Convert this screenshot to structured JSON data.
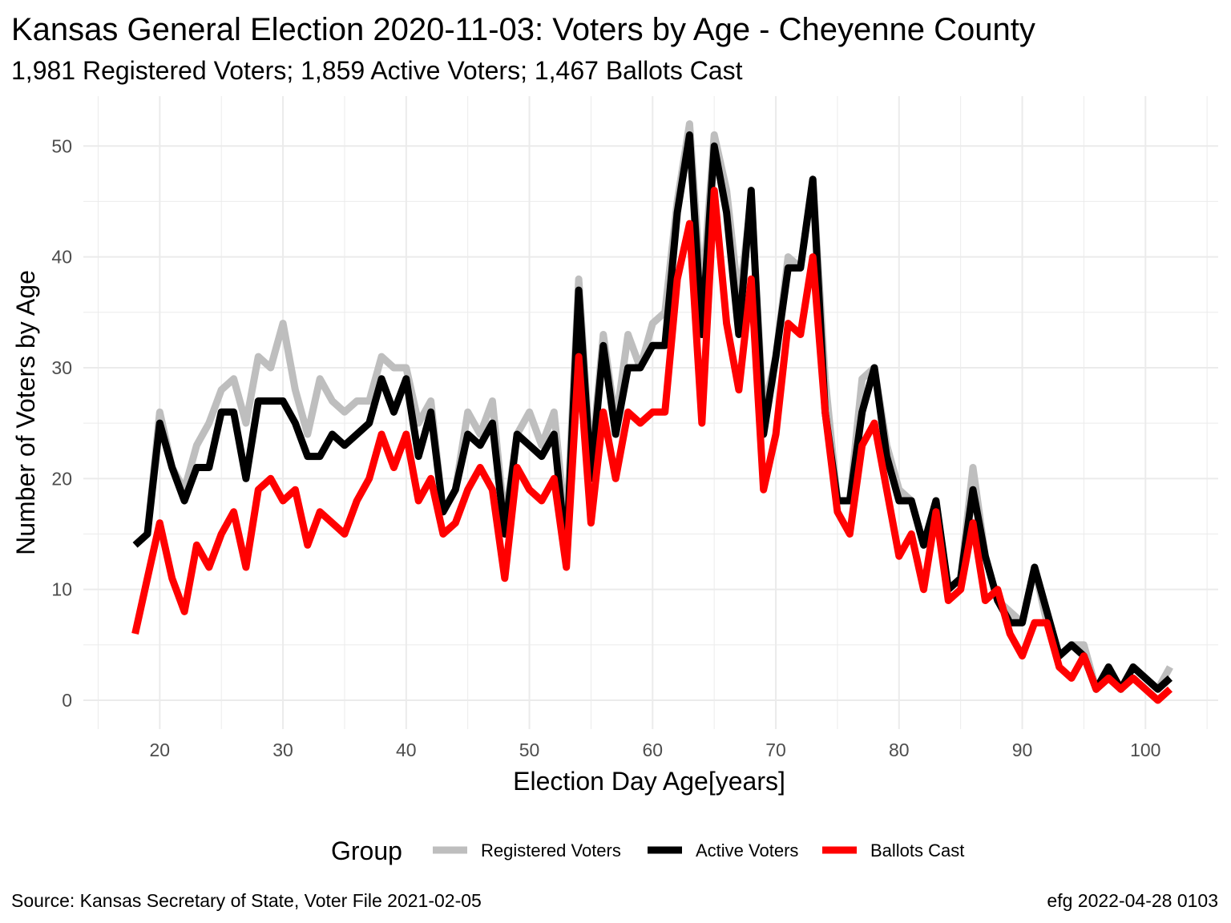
{
  "chart_data": {
    "type": "line",
    "title": "Kansas General Election 2020-11-03:  Voters by Age - Cheyenne County",
    "subtitle": "1,981 Registered Voters; 1,859 Active Voters; 1,467 Ballots Cast",
    "xlabel": "Election Day Age[years]",
    "ylabel": "Number of Voters by Age",
    "xlim": [
      13.8,
      105.9
    ],
    "ylim": [
      -2.6,
      54.5
    ],
    "x_ticks": [
      20,
      30,
      40,
      50,
      60,
      70,
      80,
      90,
      100
    ],
    "y_ticks": [
      0,
      10,
      20,
      30,
      40,
      50
    ],
    "x_tick_labels": [
      "20",
      "30",
      "40",
      "50",
      "60",
      "70",
      "80",
      "90",
      "100"
    ],
    "y_tick_labels": [
      "0",
      "10",
      "20",
      "30",
      "40",
      "50"
    ],
    "grid": true,
    "legend": {
      "title": "Group",
      "position": "bottom",
      "items": [
        "Registered Voters",
        "Active Voters",
        "Ballots Cast"
      ]
    },
    "caption_left": "Source:  Kansas Secretary of State, Voter File  2021-02-05",
    "caption_right": "efg 2022-04-28 0103",
    "x": [
      18,
      19,
      20,
      21,
      22,
      23,
      24,
      25,
      26,
      27,
      28,
      29,
      30,
      31,
      32,
      33,
      34,
      35,
      36,
      37,
      38,
      39,
      40,
      41,
      42,
      43,
      44,
      45,
      46,
      47,
      48,
      49,
      50,
      51,
      52,
      53,
      54,
      55,
      56,
      57,
      58,
      59,
      60,
      61,
      62,
      63,
      64,
      65,
      66,
      67,
      68,
      69,
      70,
      71,
      72,
      73,
      74,
      75,
      76,
      77,
      78,
      79,
      80,
      81,
      82,
      83,
      84,
      85,
      86,
      87,
      88,
      89,
      90,
      91,
      92,
      93,
      94,
      95,
      96,
      97,
      98,
      99,
      100,
      101,
      102
    ],
    "series": [
      {
        "name": "Registered Voters",
        "color": "#bebebe",
        "values": [
          14,
          15,
          26,
          21,
          19,
          23,
          25,
          28,
          29,
          25,
          31,
          30,
          34,
          28,
          24,
          29,
          27,
          26,
          27,
          27,
          31,
          30,
          30,
          25,
          27,
          17,
          19,
          26,
          24,
          27,
          16,
          24,
          26,
          23,
          26,
          15,
          38,
          21,
          33,
          25,
          33,
          30,
          34,
          35,
          45,
          52,
          36,
          51,
          46,
          36,
          45,
          26,
          31,
          40,
          39,
          47,
          29,
          18,
          18,
          29,
          30,
          23,
          19,
          18,
          14,
          18,
          10,
          11,
          21,
          13,
          9,
          8,
          7,
          12,
          7,
          4,
          5,
          5,
          1,
          2,
          1,
          3,
          2,
          1,
          3
        ]
      },
      {
        "name": "Active Voters",
        "color": "#000000",
        "values": [
          14,
          15,
          25,
          21,
          18,
          21,
          21,
          26,
          26,
          20,
          27,
          27,
          27,
          25,
          22,
          22,
          24,
          23,
          24,
          25,
          29,
          26,
          29,
          22,
          26,
          17,
          19,
          24,
          23,
          25,
          15,
          24,
          23,
          22,
          24,
          13,
          37,
          20,
          32,
          24,
          30,
          30,
          32,
          32,
          44,
          51,
          33,
          50,
          44,
          33,
          46,
          24,
          31,
          39,
          39,
          47,
          26,
          18,
          18,
          26,
          30,
          22,
          18,
          18,
          14,
          18,
          10,
          11,
          19,
          13,
          9,
          7,
          7,
          12,
          8,
          4,
          5,
          4,
          1,
          3,
          1,
          3,
          2,
          1,
          2
        ]
      },
      {
        "name": "Ballots Cast",
        "color": "#ff0000",
        "values": [
          6,
          11,
          16,
          11,
          8,
          14,
          12,
          15,
          17,
          12,
          19,
          20,
          18,
          19,
          14,
          17,
          16,
          15,
          18,
          20,
          24,
          21,
          24,
          18,
          20,
          15,
          16,
          19,
          21,
          19,
          11,
          21,
          19,
          18,
          20,
          12,
          31,
          16,
          26,
          20,
          26,
          25,
          26,
          26,
          38,
          43,
          25,
          46,
          34,
          28,
          38,
          19,
          24,
          34,
          33,
          40,
          26,
          17,
          15,
          23,
          25,
          19,
          13,
          15,
          10,
          17,
          9,
          10,
          16,
          9,
          10,
          6,
          4,
          7,
          7,
          3,
          2,
          4,
          1,
          2,
          1,
          2,
          1,
          0,
          1
        ]
      }
    ]
  }
}
